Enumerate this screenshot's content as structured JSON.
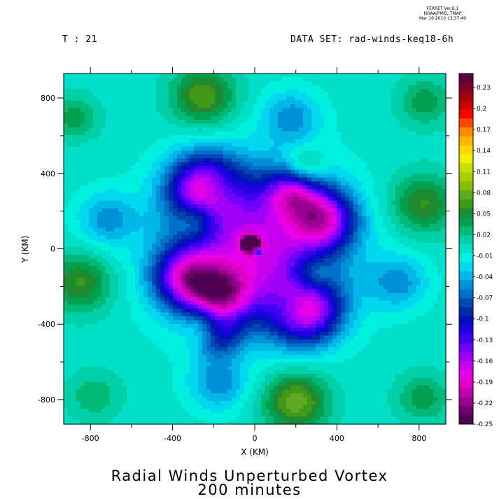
{
  "header": {
    "time_label": "T : 21",
    "dataset_label": "DATA SET: rad-winds-keq18-6h",
    "stamp_line1": "FERRET  Ver.6.1",
    "stamp_line2": "NOAA/PMEL TMAP",
    "stamp_line3": "Mar 16 2010 13:37:49"
  },
  "chart_data": {
    "type": "heatmap",
    "title_line1": "Radial Winds Unperturbed Vortex",
    "title_line2": "200 minutes",
    "xlabel": "X (KM)",
    "ylabel": "Y (KM)",
    "xlim": [
      -930,
      930
    ],
    "ylim": [
      -930,
      930
    ],
    "x_ticks": [
      -800,
      -400,
      0,
      400,
      800
    ],
    "y_ticks": [
      800,
      400,
      0,
      -400,
      -800
    ],
    "x_tick_labels": [
      "-800",
      "-400",
      "0",
      "400",
      "800"
    ],
    "y_tick_labels": [
      "800",
      "400",
      "0",
      "-400",
      "-800"
    ],
    "colorbar_labels": [
      "0.23",
      "0.2",
      "0.17",
      "0.14",
      "0.11",
      "0.08",
      "0.05",
      "0.02",
      "-0.01",
      "-0.04",
      "-0.07",
      "-0.1",
      "-0.13",
      "-0.16",
      "-0.19",
      "-0.22",
      "-0.25"
    ],
    "colorbar_range": [
      -0.25,
      0.25
    ],
    "colorbar_colors": [
      "#5a0040",
      "#7a0028",
      "#a00010",
      "#c80000",
      "#ff0000",
      "#ff4a00",
      "#ff8a00",
      "#ffb400",
      "#ffd800",
      "#f0f000",
      "#c8e000",
      "#a8d000",
      "#88c000",
      "#60a820",
      "#409818",
      "#208a30",
      "#00a050",
      "#00b878",
      "#00d0a8",
      "#00e0c8",
      "#00f0e0",
      "#00d8f0",
      "#00b8e8",
      "#0090d8",
      "#0070c8",
      "#0048b8",
      "#0028a8",
      "#0010c0",
      "#2000e0",
      "#4000f0",
      "#7000f8",
      "#a000f8",
      "#c800f0",
      "#e800e8",
      "#e000c8",
      "#c000b0",
      "#9a0090",
      "#700070",
      "#500050"
    ],
    "features": [
      {
        "x": 0,
        "y": 0,
        "value": -0.17,
        "spread": 270
      },
      {
        "x": -250,
        "y": 330,
        "value": -0.15,
        "spread": 120
      },
      {
        "x": 250,
        "y": -330,
        "value": -0.15,
        "spread": 120
      },
      {
        "x": 330,
        "y": 160,
        "value": -0.14,
        "spread": 110
      },
      {
        "x": -330,
        "y": -160,
        "value": -0.14,
        "spread": 110
      },
      {
        "x": -160,
        "y": -250,
        "value": -0.12,
        "spread": 100
      },
      {
        "x": 180,
        "y": 300,
        "value": -0.1,
        "spread": 90
      },
      {
        "x": -180,
        "y": -460,
        "value": -0.08,
        "spread": 80
      },
      {
        "x": -850,
        "y": -180,
        "value": 0.06,
        "spread": 110
      },
      {
        "x": 820,
        "y": 240,
        "value": 0.06,
        "spread": 110
      },
      {
        "x": -250,
        "y": 810,
        "value": 0.07,
        "spread": 110
      },
      {
        "x": 200,
        "y": -810,
        "value": 0.08,
        "spread": 110
      },
      {
        "x": -180,
        "y": 320,
        "value": 0.04,
        "spread": 70
      },
      {
        "x": 180,
        "y": -300,
        "value": 0.04,
        "spread": 70
      },
      {
        "x": -240,
        "y": -420,
        "value": 0.05,
        "spread": 70
      },
      {
        "x": 240,
        "y": 430,
        "value": 0.05,
        "spread": 70
      },
      {
        "x": 280,
        "y": -140,
        "value": 0.05,
        "spread": 70
      },
      {
        "x": -280,
        "y": 150,
        "value": 0.05,
        "spread": 70
      },
      {
        "x": -880,
        "y": 700,
        "value": 0.04,
        "spread": 80
      },
      {
        "x": 830,
        "y": 780,
        "value": 0.04,
        "spread": 90
      },
      {
        "x": 820,
        "y": -790,
        "value": 0.04,
        "spread": 90
      },
      {
        "x": -780,
        "y": -780,
        "value": 0.03,
        "spread": 90
      },
      {
        "x": 700,
        "y": -180,
        "value": -0.05,
        "spread": 100
      },
      {
        "x": -720,
        "y": 160,
        "value": -0.05,
        "spread": 100
      },
      {
        "x": -180,
        "y": -720,
        "value": -0.05,
        "spread": 100
      },
      {
        "x": 180,
        "y": 700,
        "value": -0.05,
        "spread": 100
      },
      {
        "x": 10,
        "y": -10,
        "value": 0.12,
        "spread": 15
      },
      {
        "x": -20,
        "y": 25,
        "value": -0.24,
        "spread": 28
      }
    ]
  }
}
